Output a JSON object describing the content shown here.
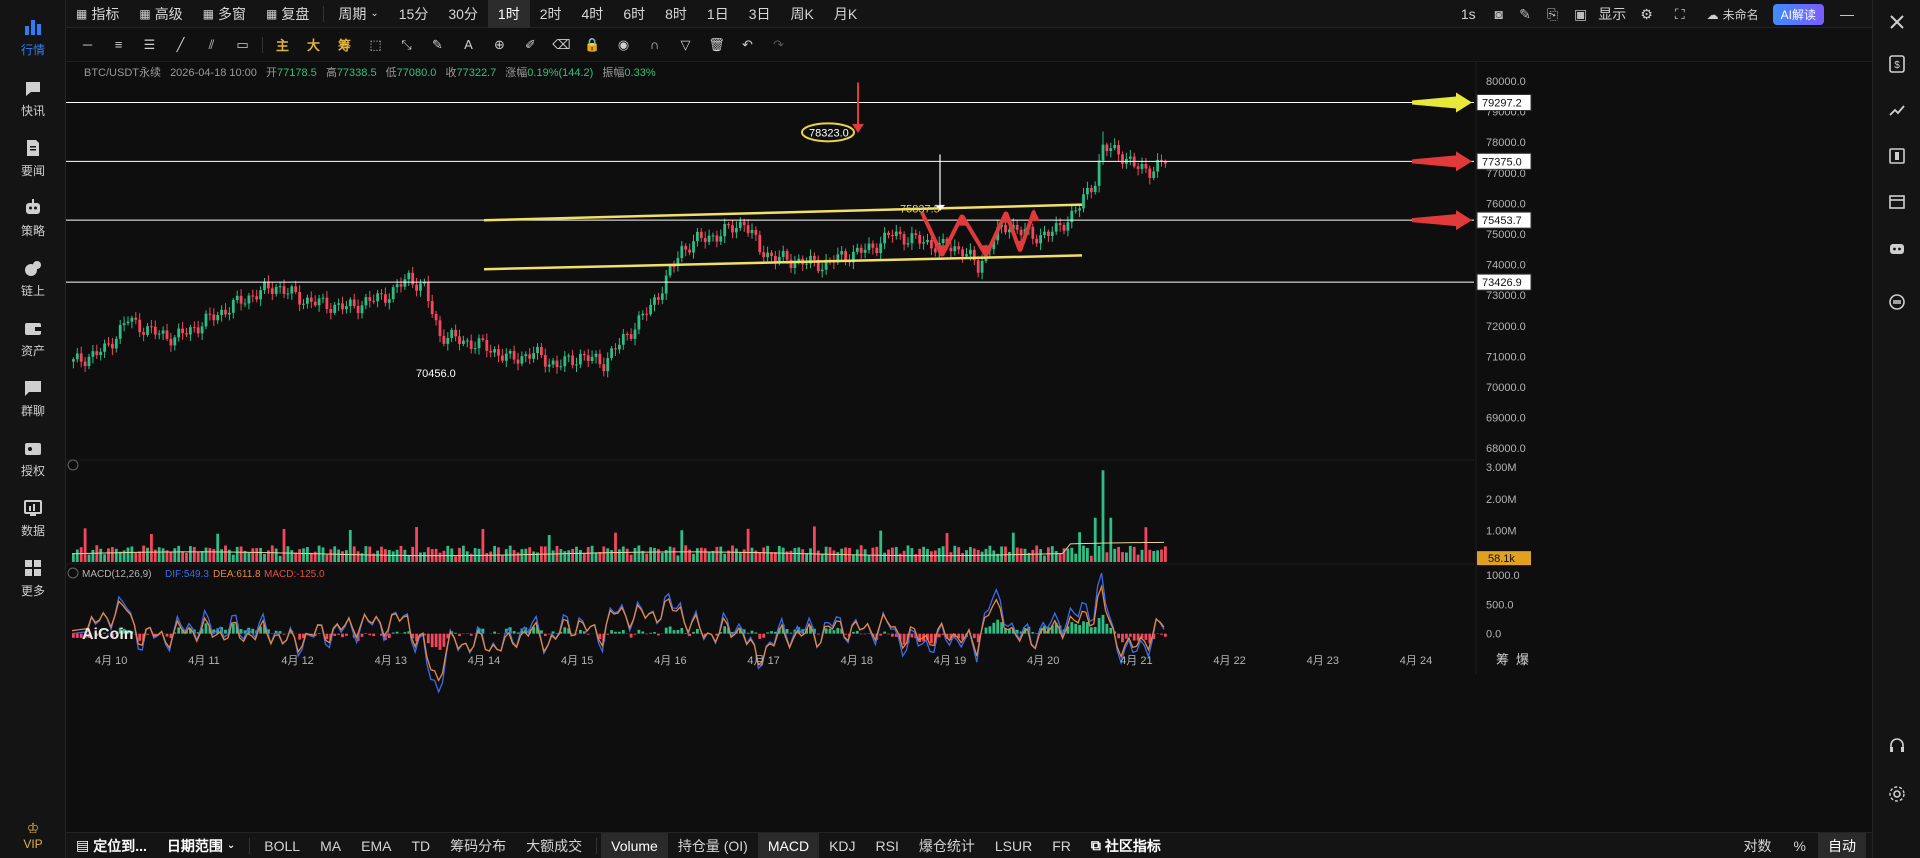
{
  "topbar": {
    "items": [
      "指标",
      "高级",
      "多窗",
      "复盘",
      "周期",
      "15分",
      "30分",
      "1时",
      "2时",
      "4时",
      "6时",
      "8时",
      "1日",
      "3日",
      "周K",
      "月K"
    ],
    "active_index": 7,
    "right": {
      "interval": "1s",
      "display": "显示",
      "layout_name": "未命名",
      "ai": "AI解读"
    }
  },
  "sidebar": {
    "items": [
      {
        "label": "行情",
        "icon": "chart-bars-icon"
      },
      {
        "label": "快讯",
        "icon": "news-flash-icon"
      },
      {
        "label": "要闻",
        "icon": "document-icon"
      },
      {
        "label": "策略",
        "icon": "robot-icon"
      },
      {
        "label": "链上",
        "icon": "chain-icon"
      },
      {
        "label": "资产",
        "icon": "wallet-icon"
      },
      {
        "label": "群聊",
        "icon": "chat-icon"
      },
      {
        "label": "授权",
        "icon": "key-icon"
      },
      {
        "label": "数据",
        "icon": "data-board-icon"
      },
      {
        "label": "更多",
        "icon": "grid-icon"
      }
    ],
    "vip": "VIP"
  },
  "drawbar": {
    "text_tools": [
      "主",
      "大",
      "筹"
    ]
  },
  "info": {
    "symbol": "BTC/USDT永续",
    "datetime": "2026-04-18 10:00",
    "open_label": "开",
    "open": "77178.5",
    "high_label": "高",
    "high": "77338.5",
    "low_label": "低",
    "low": "77080.0",
    "close_label": "收",
    "close": "77322.7",
    "change_label": "涨幅",
    "change": "0.19%(144.2)",
    "amp_label": "振幅",
    "amp": "0.33%"
  },
  "chart_data": [
    {
      "type": "candlestick",
      "title": "BTC/USDT永续 1时",
      "y_ticks": [
        80000.0,
        79000.0,
        78000.0,
        77000.0,
        76000.0,
        75000.0,
        74000.0,
        73000.0,
        72000.0,
        71000.0,
        70000.0,
        69000.0,
        68000.0
      ],
      "ylim": [
        67500,
        80700
      ],
      "x_ticks": [
        "4月 10",
        "4月 11",
        "4月 12",
        "4月 13",
        "4月 14",
        "4月 15",
        "4月 16",
        "4月 17",
        "4月 18",
        "4月 19",
        "4月 20",
        "4月 21",
        "4月 22",
        "4月 23",
        "4月 24"
      ],
      "price_lines": [
        79297.2,
        77375.0,
        75453.7,
        73426.9
      ],
      "price_line_colors": [
        "#e8e83a",
        "#e03a3a",
        "#e03a3a",
        "#dddddd"
      ],
      "annotations": {
        "high_label": "78323.0",
        "low_label": "70456.0",
        "target_label": "75837.5"
      },
      "last_price_bg": "#ffffff",
      "up_color": "#2ebd85",
      "down_color": "#f6465d",
      "channel_color": "#f0e06a",
      "closes_anchor": [
        [
          0,
          70800
        ],
        [
          8,
          71200
        ],
        [
          14,
          72200
        ],
        [
          20,
          71800
        ],
        [
          26,
          71600
        ],
        [
          32,
          72000
        ],
        [
          40,
          72600
        ],
        [
          46,
          73000
        ],
        [
          52,
          73300
        ],
        [
          58,
          72900
        ],
        [
          64,
          72700
        ],
        [
          70,
          72600
        ],
        [
          76,
          72800
        ],
        [
          82,
          73100
        ],
        [
          86,
          73600
        ],
        [
          90,
          73200
        ],
        [
          94,
          71700
        ],
        [
          100,
          71500
        ],
        [
          106,
          71300
        ],
        [
          112,
          70900
        ],
        [
          118,
          71100
        ],
        [
          124,
          70700
        ],
        [
          130,
          71000
        ],
        [
          136,
          70800
        ],
        [
          142,
          71700
        ],
        [
          148,
          72600
        ],
        [
          152,
          73500
        ],
        [
          156,
          74500
        ],
        [
          160,
          74800
        ],
        [
          166,
          75000
        ],
        [
          172,
          75400
        ],
        [
          176,
          74500
        ],
        [
          180,
          74200
        ],
        [
          186,
          74100
        ],
        [
          192,
          74000
        ],
        [
          198,
          74300
        ],
        [
          204,
          74500
        ],
        [
          210,
          75000
        ],
        [
          216,
          74800
        ],
        [
          222,
          74600
        ],
        [
          228,
          74500
        ],
        [
          232,
          73900
        ],
        [
          236,
          74900
        ],
        [
          240,
          75300
        ],
        [
          246,
          74900
        ],
        [
          252,
          75100
        ],
        [
          258,
          75900
        ],
        [
          262,
          76800
        ],
        [
          264,
          77800
        ],
        [
          268,
          77700
        ],
        [
          272,
          77200
        ],
        [
          276,
          77100
        ],
        [
          280,
          77300
        ]
      ]
    },
    {
      "type": "bar",
      "title": "Volume",
      "y_ticks": [
        "3.00M",
        "2.00M",
        "1.00M"
      ],
      "last_value": "58.1k",
      "last_value_bg": "#e0a020"
    },
    {
      "type": "line",
      "title": "MACD(12,26,9)",
      "series": [
        {
          "name": "DIF",
          "value": "549.3",
          "color": "#3a6cf0"
        },
        {
          "name": "DEA",
          "value": "611.8",
          "color": "#e8893a"
        },
        {
          "name": "MACD",
          "value": "-125.0",
          "color": "#e84a4a"
        }
      ],
      "y_ticks": [
        "1000.0",
        "500.0",
        "0.0"
      ]
    }
  ],
  "watermark": "AiCoin",
  "bottombar": {
    "left": [
      "定位到...",
      "日期范围"
    ],
    "indicators": [
      "BOLL",
      "MA",
      "EMA",
      "TD",
      "筹码分布",
      "大额成交"
    ],
    "sub": [
      "Volume",
      "持仓量 (OI)",
      "MACD",
      "KDJ",
      "RSI",
      "爆仓统计",
      "LSUR",
      "FR"
    ],
    "active_sub": [
      "Volume",
      "MACD"
    ],
    "community": "社区指标",
    "right": [
      "对数",
      "%",
      "自动"
    ],
    "axis_corner": [
      "筹",
      "爆"
    ]
  }
}
